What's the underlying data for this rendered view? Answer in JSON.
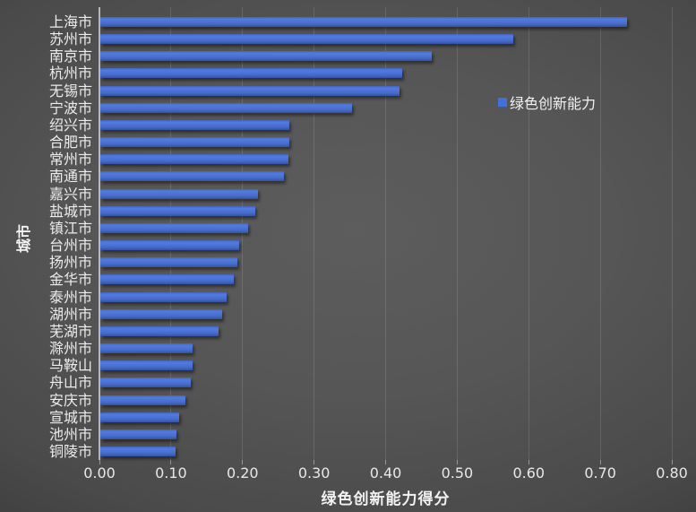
{
  "chart_data": {
    "type": "bar",
    "orientation": "horizontal",
    "title": "",
    "xlabel": "绿色创新能力得分",
    "ylabel": "城市",
    "xlim": [
      0,
      0.8
    ],
    "xtick_values": [
      0.0,
      0.1,
      0.2,
      0.3,
      0.4,
      0.5,
      0.6,
      0.7,
      0.8
    ],
    "xtick_labels": [
      "0.00",
      "0.10",
      "0.20",
      "0.30",
      "0.40",
      "0.50",
      "0.60",
      "0.70",
      "0.80"
    ],
    "grid": "vertical-only",
    "legend_position": "inside-upper-right",
    "categories": [
      "上海市",
      "苏州市",
      "南京市",
      "杭州市",
      "无锡市",
      "宁波市",
      "绍兴市",
      "合肥市",
      "常州市",
      "南通市",
      "嘉兴市",
      "盐城市",
      "镇江市",
      "台州市",
      "扬州市",
      "金华市",
      "泰州市",
      "湖州市",
      "芜湖市",
      "滁州市",
      "马鞍山",
      "舟山市",
      "安庆市",
      "宣城市",
      "池州市",
      "铜陵市"
    ],
    "series": [
      {
        "name": "绿色创新能力",
        "values": [
          0.738,
          0.578,
          0.464,
          0.423,
          0.42,
          0.353,
          0.266,
          0.265,
          0.264,
          0.258,
          0.222,
          0.218,
          0.208,
          0.195,
          0.193,
          0.188,
          0.178,
          0.172,
          0.166,
          0.13,
          0.13,
          0.128,
          0.12,
          0.112,
          0.108,
          0.106
        ]
      }
    ]
  },
  "colors": {
    "bar_fill": "#4472C4",
    "bar_gradient_top": "#537ade",
    "bar_gradient_bottom": "#36519f",
    "background_center": "#5d5d5d",
    "background_edge": "#262626",
    "text": "#ececec",
    "gridline": "#6e6e6e",
    "axis_line": "#b0b0b0"
  }
}
